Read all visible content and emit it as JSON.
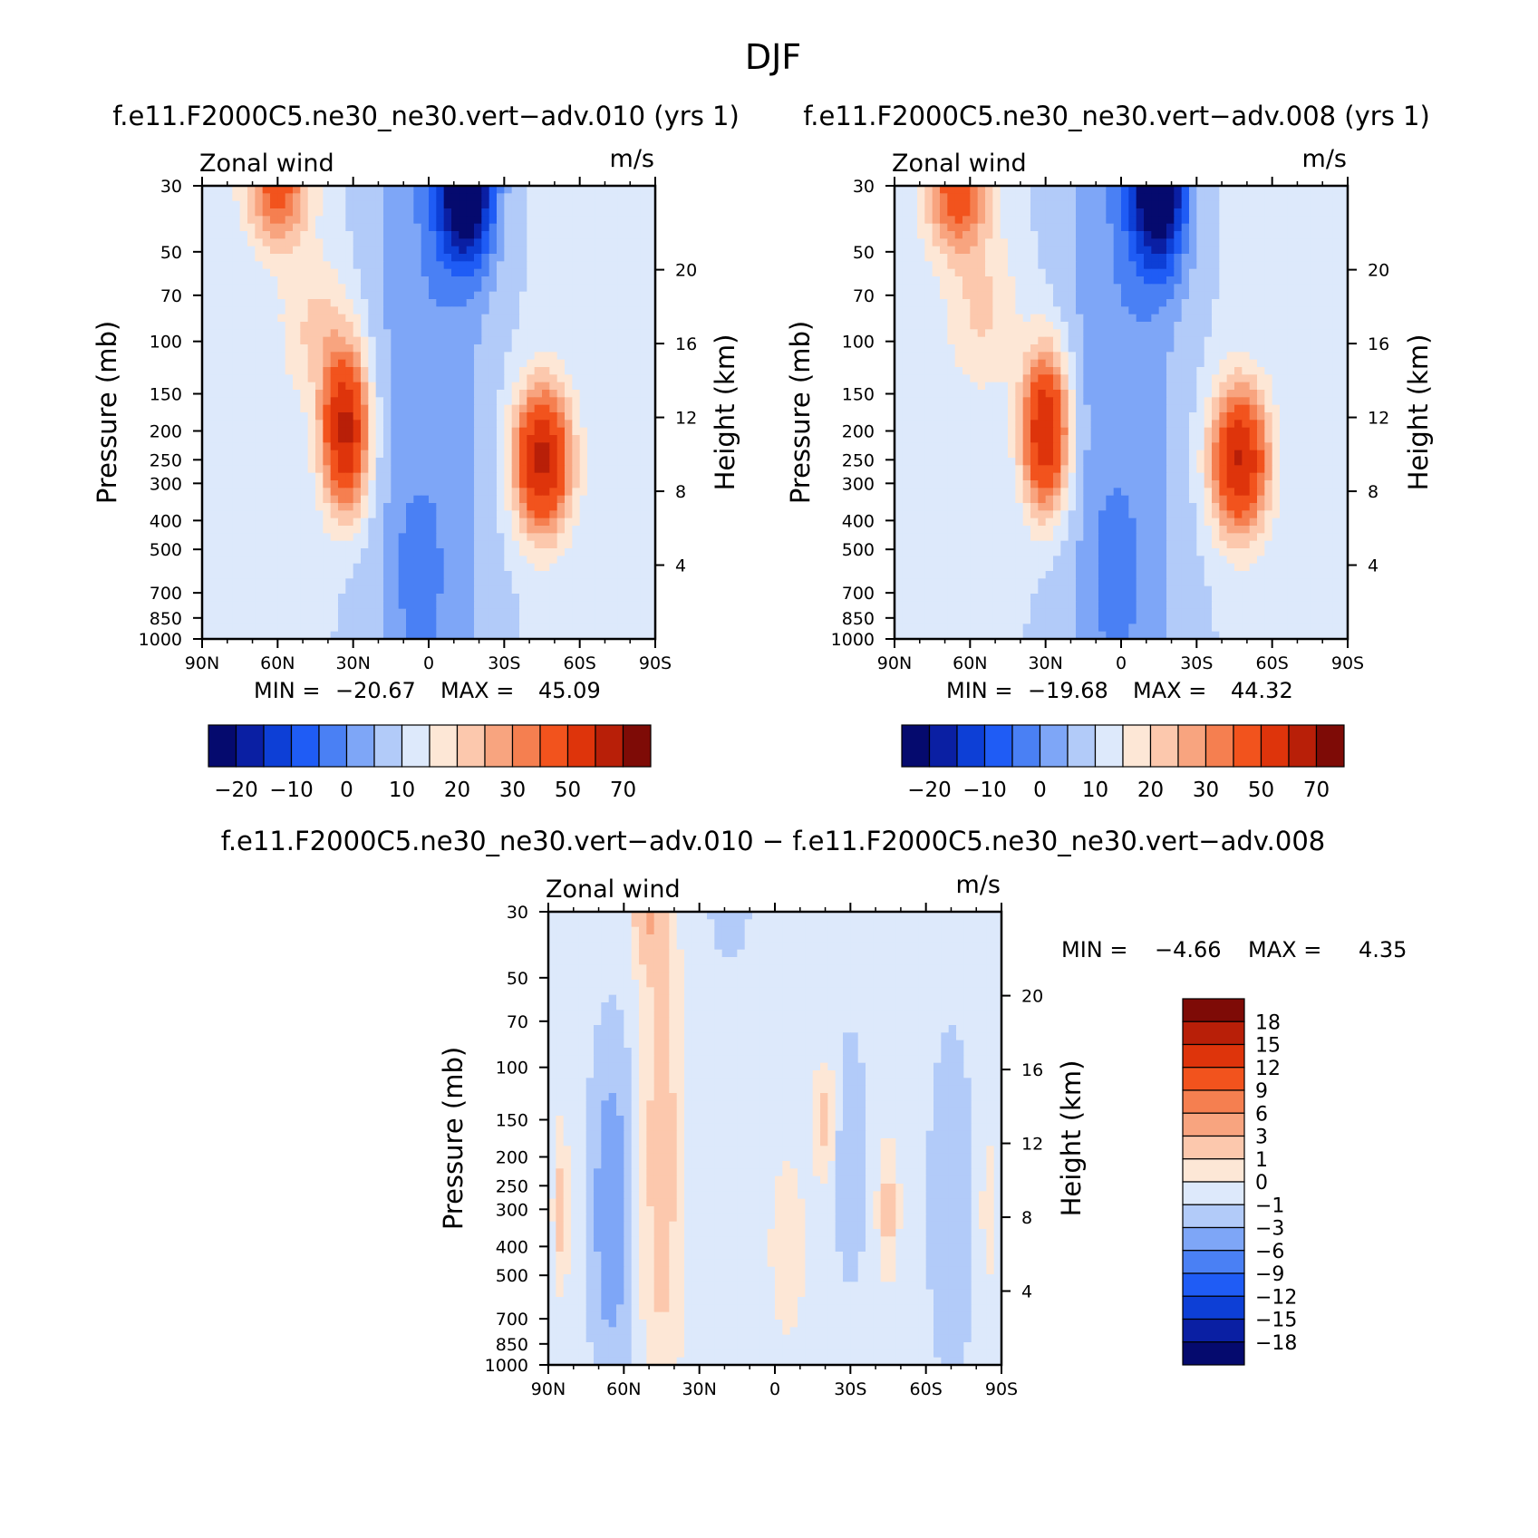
{
  "figure": {
    "title": "DJF"
  },
  "palettes": {
    "main": [
      "#050a6e",
      "#0a1fa3",
      "#0d3fd6",
      "#1f5cf5",
      "#4a80f4",
      "#7ea6f7",
      "#b2cbf9",
      "#dde9fb",
      "#fde7d6",
      "#fcc8ad",
      "#f8a47f",
      "#f57f50",
      "#f2531d",
      "#de340b",
      "#b81f08",
      "#7e0b06"
    ],
    "diff": [
      "#050a6e",
      "#0a1fa3",
      "#0d3fd6",
      "#1f5cf5",
      "#4a80f4",
      "#7ea6f7",
      "#b2cbf9",
      "#dde9fb",
      "#fde7d6",
      "#fcc8ad",
      "#f8a47f",
      "#f57f50",
      "#f2531d",
      "#de340b",
      "#b81f08",
      "#7e0b06"
    ]
  },
  "colorbar_main_labels": [
    "−20",
    "−10",
    "0",
    "10",
    "20",
    "30",
    "50",
    "70"
  ],
  "colorbar_diff_labels": [
    "18",
    "15",
    "12",
    "9",
    "6",
    "3",
    "1",
    "0",
    "−1",
    "−3",
    "−6",
    "−9",
    "−12",
    "−15",
    "−18"
  ],
  "chart_data": [
    {
      "type": "heatmap",
      "title": "f.e11.F2000C5.ne30_ne30.vert−adv.010 (yrs 1)",
      "variable_label": "Zonal wind",
      "units": "m/s",
      "ylabel": "Pressure (mb)",
      "ylabel_right": "Height (km)",
      "x_ticks": [
        "90N",
        "60N",
        "30N",
        "0",
        "30S",
        "60S",
        "90S"
      ],
      "y_ticks": [
        "30",
        "50",
        "70",
        "100",
        "150",
        "200",
        "250",
        "300",
        "400",
        "500",
        "700",
        "850",
        "1000"
      ],
      "height_ticks": [
        "20",
        "16",
        "12",
        "8",
        "4"
      ],
      "stats": {
        "min_label": "MIN =",
        "min": "−20.67",
        "max_label": "MAX =",
        "max": "45.09"
      },
      "features": [
        {
          "lat": 33,
          "p": 200,
          "amp": 48,
          "wlat": 9,
          "wlogp": 0.6
        },
        {
          "lat": -45,
          "p": 250,
          "amp": 47,
          "wlat": 11,
          "wlogp": 0.55
        },
        {
          "lat": 60,
          "p": 30,
          "amp": 28,
          "wlat": 12,
          "wlogp": 0.45
        },
        {
          "lat": 45,
          "p": 90,
          "amp": 10,
          "wlat": 14,
          "wlogp": 0.6
        },
        {
          "lat": -15,
          "p": 30,
          "amp": -38,
          "wlat": 11,
          "wlogp": 0.6
        },
        {
          "lat": 5,
          "p": 600,
          "amp": -6,
          "wlat": 8,
          "wlogp": 0.5
        }
      ]
    },
    {
      "type": "heatmap",
      "title": "f.e11.F2000C5.ne30_ne30.vert−adv.008 (yrs 1)",
      "variable_label": "Zonal wind",
      "units": "m/s",
      "ylabel": "Pressure (mb)",
      "ylabel_right": "Height (km)",
      "x_ticks": [
        "90N",
        "60N",
        "30N",
        "0",
        "30S",
        "60S",
        "90S"
      ],
      "y_ticks": [
        "30",
        "50",
        "70",
        "100",
        "150",
        "200",
        "250",
        "300",
        "400",
        "500",
        "700",
        "850",
        "1000"
      ],
      "height_ticks": [
        "20",
        "16",
        "12",
        "8",
        "4"
      ],
      "stats": {
        "min_label": "MIN =",
        "min": "−19.68",
        "max_label": "MAX =",
        "max": "44.32"
      },
      "features": [
        {
          "lat": 30,
          "p": 200,
          "amp": 47,
          "wlat": 9,
          "wlogp": 0.6
        },
        {
          "lat": -47,
          "p": 250,
          "amp": 45,
          "wlat": 11,
          "wlogp": 0.55
        },
        {
          "lat": 65,
          "p": 30,
          "amp": 30,
          "wlat": 12,
          "wlogp": 0.5
        },
        {
          "lat": 55,
          "p": 80,
          "amp": 10,
          "wlat": 14,
          "wlogp": 0.6
        },
        {
          "lat": -15,
          "p": 30,
          "amp": -37,
          "wlat": 11,
          "wlogp": 0.65
        },
        {
          "lat": 3,
          "p": 600,
          "amp": -6,
          "wlat": 8,
          "wlogp": 0.5
        }
      ]
    },
    {
      "type": "heatmap",
      "title": "f.e11.F2000C5.ne30_ne30.vert−adv.010 − f.e11.F2000C5.ne30_ne30.vert−adv.008",
      "variable_label": "Zonal wind",
      "units": "m/s",
      "ylabel": "Pressure (mb)",
      "ylabel_right": "Height (km)",
      "x_ticks": [
        "90N",
        "60N",
        "30N",
        "0",
        "30S",
        "60S",
        "90S"
      ],
      "y_ticks": [
        "30",
        "50",
        "70",
        "100",
        "150",
        "200",
        "250",
        "300",
        "400",
        "500",
        "700",
        "850",
        "1000"
      ],
      "height_ticks": [
        "20",
        "16",
        "12",
        "8",
        "4"
      ],
      "stats": {
        "min_label": "MIN =",
        "min": "−4.66",
        "max_label": "MAX =",
        "max": "4.35"
      },
      "features": [
        {
          "lat": 45,
          "p": 200,
          "amp": 2.2,
          "wlat": 8,
          "wlogp": 2.0
        },
        {
          "lat": 50,
          "p": 30,
          "amp": 3.5,
          "wlat": 6,
          "wlogp": 0.4
        },
        {
          "lat": 65,
          "p": 300,
          "amp": -5.0,
          "wlat": 7,
          "wlogp": 1.1
        },
        {
          "lat": 85,
          "p": 300,
          "amp": 2.0,
          "wlat": 3,
          "wlogp": 0.6
        },
        {
          "lat": -20,
          "p": 150,
          "amp": 2.0,
          "wlat": 5,
          "wlogp": 0.4
        },
        {
          "lat": -45,
          "p": 300,
          "amp": 2.0,
          "wlat": 4,
          "wlogp": 0.5
        },
        {
          "lat": -30,
          "p": 200,
          "amp": -2.5,
          "wlat": 5,
          "wlogp": 0.8
        },
        {
          "lat": -70,
          "p": 300,
          "amp": -2.0,
          "wlat": 8,
          "wlogp": 1.2
        },
        {
          "lat": -85,
          "p": 300,
          "amp": 1.5,
          "wlat": 3,
          "wlogp": 0.5
        },
        {
          "lat": 18,
          "p": 30,
          "amp": -2.5,
          "wlat": 6,
          "wlogp": 0.3
        },
        {
          "lat": -5,
          "p": 400,
          "amp": 1.0,
          "wlat": 8,
          "wlogp": 0.8
        }
      ]
    }
  ]
}
